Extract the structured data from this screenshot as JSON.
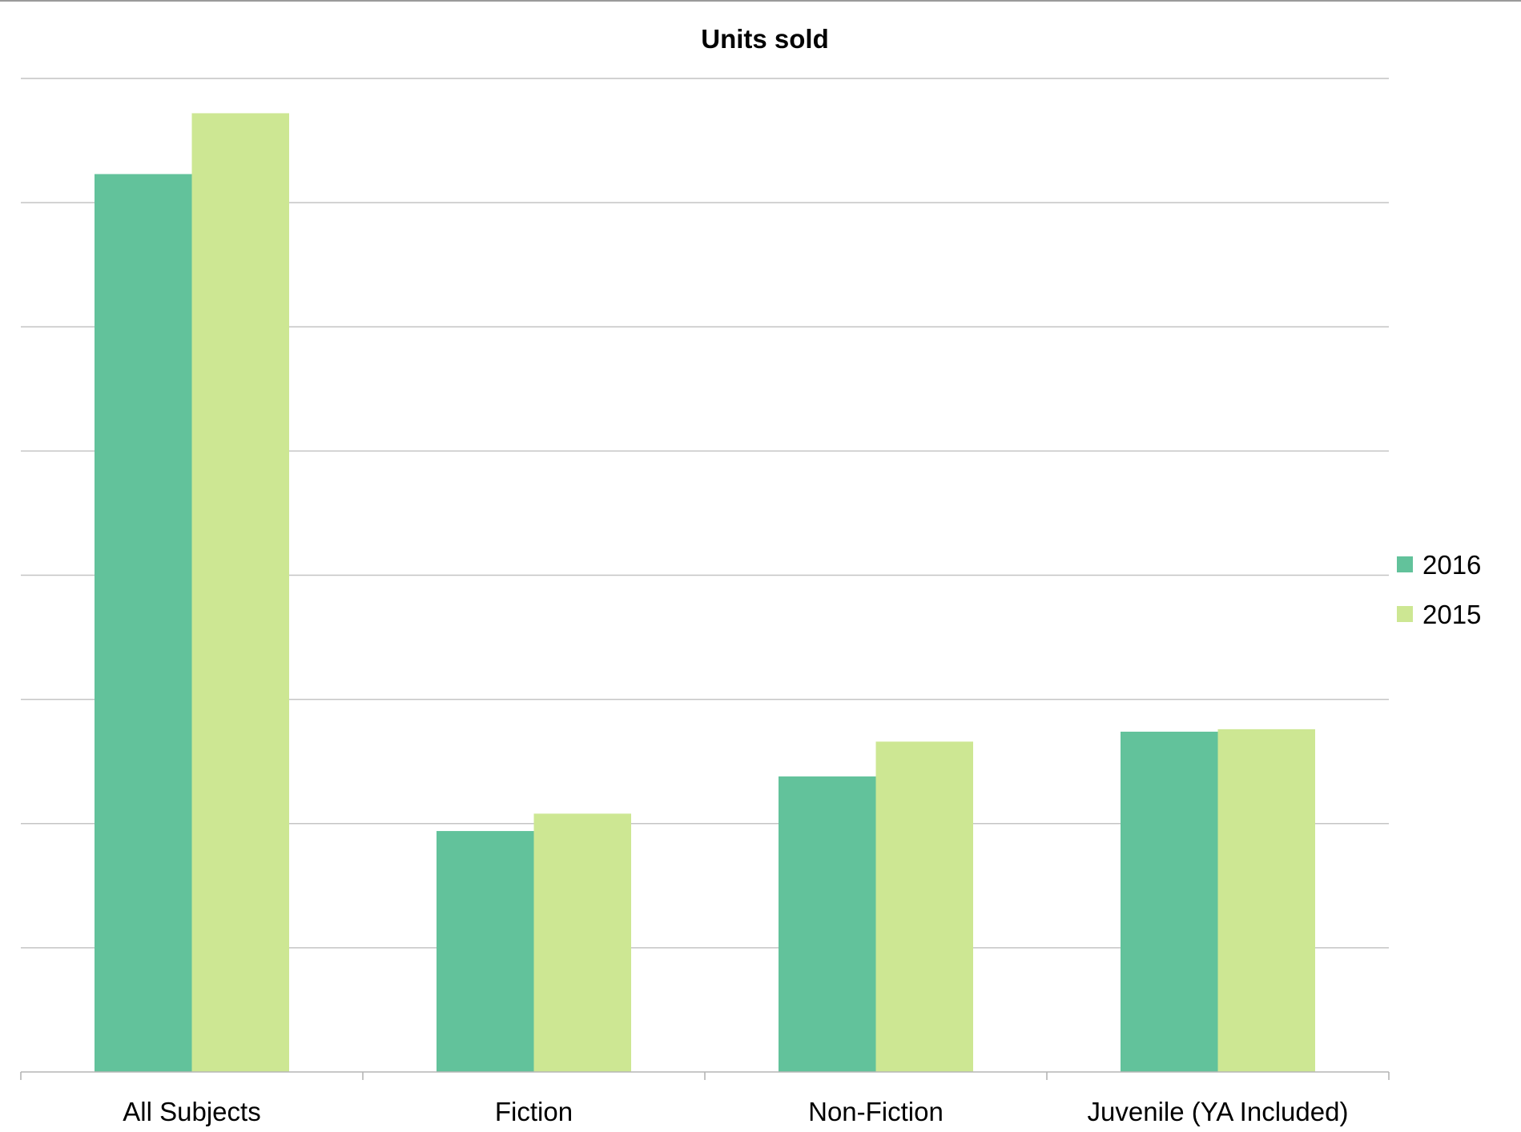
{
  "chart_data": {
    "type": "bar",
    "title": "Units sold",
    "xlabel": "",
    "ylabel": "",
    "categories": [
      "All Subjects",
      "Fiction",
      "Non-Fiction",
      "Juvenile (YA Included)"
    ],
    "series": [
      {
        "name": "2016",
        "color": "#62c29b",
        "values": [
          7.23,
          1.94,
          2.38,
          2.74
        ]
      },
      {
        "name": "2015",
        "color": "#cde793",
        "values": [
          7.72,
          2.08,
          2.66,
          2.76
        ]
      }
    ],
    "ylim": [
      0,
      8
    ],
    "y_gridlines": [
      1,
      2,
      3,
      4,
      5,
      6,
      7,
      8
    ],
    "y_tick_labels_shown": false,
    "grid": true,
    "legend": "right"
  }
}
